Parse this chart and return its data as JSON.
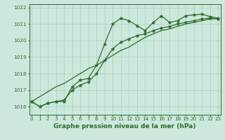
{
  "xlabel": "Graphe pression niveau de la mer (hPa)",
  "x": [
    0,
    1,
    2,
    3,
    4,
    5,
    6,
    7,
    8,
    9,
    10,
    11,
    12,
    13,
    14,
    15,
    16,
    17,
    18,
    19,
    20,
    21,
    22,
    23
  ],
  "y_main": [
    1016.3,
    1016.0,
    1016.2,
    1016.3,
    1016.3,
    1017.2,
    1017.6,
    1017.7,
    1018.5,
    1019.8,
    1021.0,
    1021.35,
    1021.2,
    1020.9,
    1020.6,
    1021.1,
    1021.5,
    1021.1,
    1021.2,
    1021.5,
    1021.55,
    1021.6,
    1021.45,
    1021.35
  ],
  "y_line2": [
    1016.3,
    1016.0,
    1016.2,
    1016.3,
    1016.4,
    1017.0,
    1017.3,
    1017.5,
    1018.0,
    1018.8,
    1019.5,
    1019.9,
    1020.1,
    1020.3,
    1020.4,
    1020.6,
    1020.75,
    1020.85,
    1021.0,
    1021.1,
    1021.2,
    1021.3,
    1021.35,
    1021.3
  ],
  "y_straight": [
    1016.3,
    1016.6,
    1016.9,
    1017.2,
    1017.4,
    1017.7,
    1018.0,
    1018.3,
    1018.5,
    1018.8,
    1019.1,
    1019.4,
    1019.6,
    1019.9,
    1020.2,
    1020.4,
    1020.6,
    1020.7,
    1020.85,
    1021.0,
    1021.1,
    1021.2,
    1021.3,
    1021.35
  ],
  "line_color": "#2d6a2d",
  "bg_color": "#cce8dc",
  "grid_color": "#aacfbe",
  "ylim": [
    1015.5,
    1022.2
  ],
  "xlim": [
    -0.3,
    23.3
  ],
  "yticks": [
    1016,
    1017,
    1018,
    1019,
    1020,
    1021,
    1022
  ],
  "xticks": [
    0,
    1,
    2,
    3,
    4,
    5,
    6,
    7,
    8,
    9,
    10,
    11,
    12,
    13,
    14,
    15,
    16,
    17,
    18,
    19,
    20,
    21,
    22,
    23
  ],
  "marker": "*",
  "markersize": 3.5,
  "linewidth": 0.9,
  "label_fontsize": 6.5,
  "tick_fontsize": 5.2
}
